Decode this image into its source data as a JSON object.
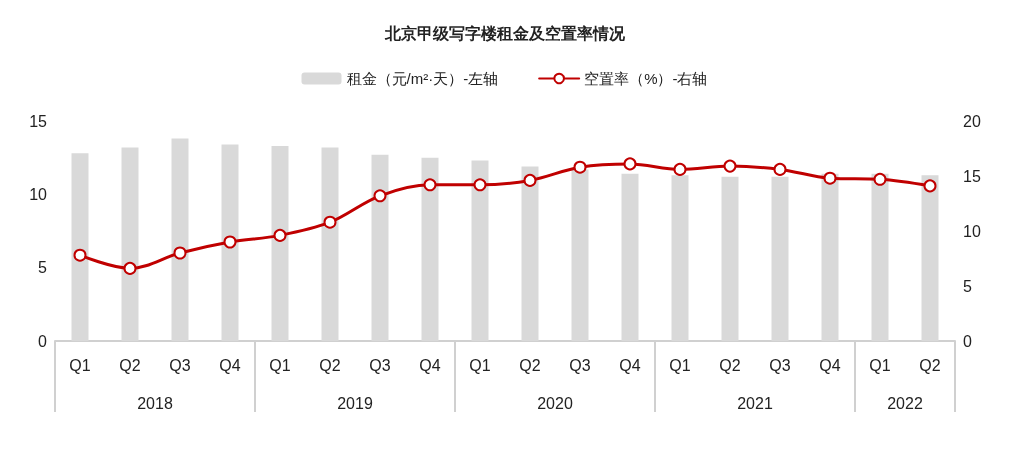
{
  "chart_data": {
    "type": "bar",
    "title": "北京甲级写字楼租金及空置率情况",
    "categories": [
      "Q1",
      "Q2",
      "Q3",
      "Q4",
      "Q1",
      "Q2",
      "Q3",
      "Q4",
      "Q1",
      "Q2",
      "Q3",
      "Q4",
      "Q1",
      "Q2",
      "Q3",
      "Q4",
      "Q1",
      "Q2"
    ],
    "series": [
      {
        "name": "租金（元/m²·天）-左轴",
        "color": "#d9d9d9",
        "values": [
          12.8,
          13.2,
          13.8,
          13.4,
          13.3,
          13.2,
          12.7,
          12.5,
          12.3,
          11.9,
          11.7,
          11.4,
          11.3,
          11.2,
          11.2,
          11.4,
          11.4,
          11.3
        ]
      },
      {
        "name": "空置率（%）-右轴",
        "type": "line",
        "axis": "y2",
        "color": "#c00000",
        "values": [
          7.8,
          6.6,
          8.0,
          9.0,
          9.6,
          10.8,
          13.2,
          14.2,
          14.2,
          14.6,
          15.8,
          16.1,
          15.6,
          15.9,
          15.6,
          14.8,
          14.7,
          14.1
        ]
      }
    ],
    "ylim": [
      0,
      15
    ],
    "yticks": [
      0,
      5,
      10,
      15
    ],
    "y2lim": [
      0,
      20
    ],
    "y2ticks": [
      0,
      5,
      10,
      15,
      20
    ],
    "annotations": [
      "2018",
      "2019",
      "2020",
      "2021",
      "2022"
    ],
    "grid": false,
    "legend": "top",
    "marker": "circle",
    "line_style": "solid"
  }
}
